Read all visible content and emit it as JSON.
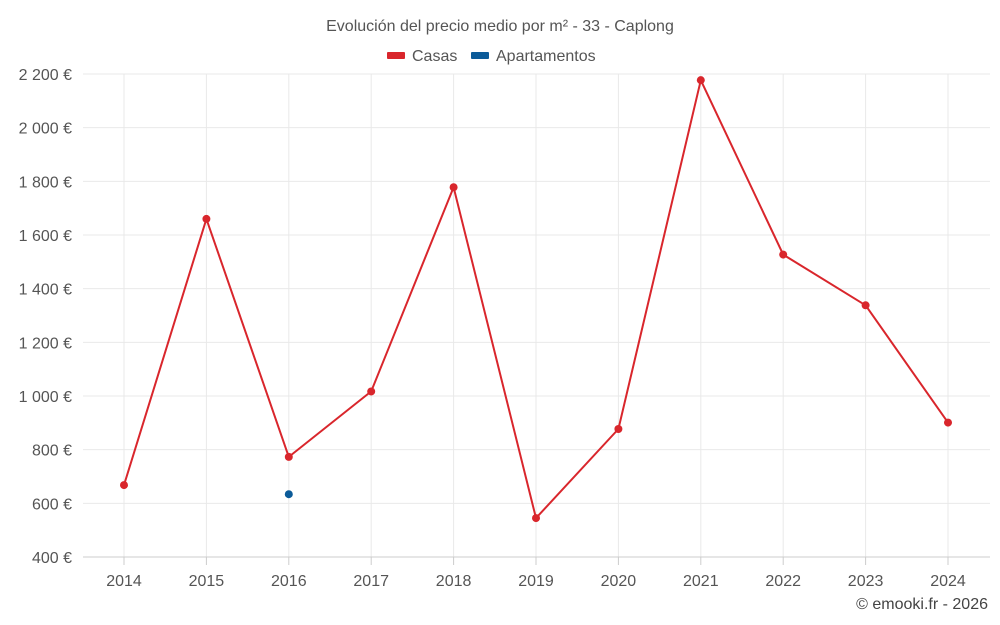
{
  "chart_data": {
    "type": "line",
    "title": "Evolución del precio medio por m² - 33 - Caplong",
    "categories": [
      "2014",
      "2015",
      "2016",
      "2017",
      "2018",
      "2019",
      "2020",
      "2021",
      "2022",
      "2023",
      "2024"
    ],
    "series": [
      {
        "name": "Casas",
        "color": "#d9262c",
        "values": [
          668,
          1660,
          773,
          1017,
          1778,
          545,
          877,
          2177,
          1527,
          1338,
          901
        ]
      },
      {
        "name": "Apartamentos",
        "color": "#0b5b99",
        "values": [
          null,
          null,
          634,
          null,
          null,
          null,
          null,
          null,
          null,
          null,
          null
        ]
      }
    ],
    "ylim": [
      400,
      2200
    ],
    "yticks": [
      400,
      600,
      800,
      1000,
      1200,
      1400,
      1600,
      1800,
      2000,
      2200
    ],
    "ytick_labels": [
      "400 €",
      "600 €",
      "800 €",
      "1 000 €",
      "1 200 €",
      "1 400 €",
      "1 600 €",
      "1 800 €",
      "2 000 €",
      "2 200 €"
    ],
    "xlabel": "",
    "ylabel": "",
    "grid": true,
    "legend_position": "top-center"
  },
  "credit": "© emooki.fr - 2026"
}
